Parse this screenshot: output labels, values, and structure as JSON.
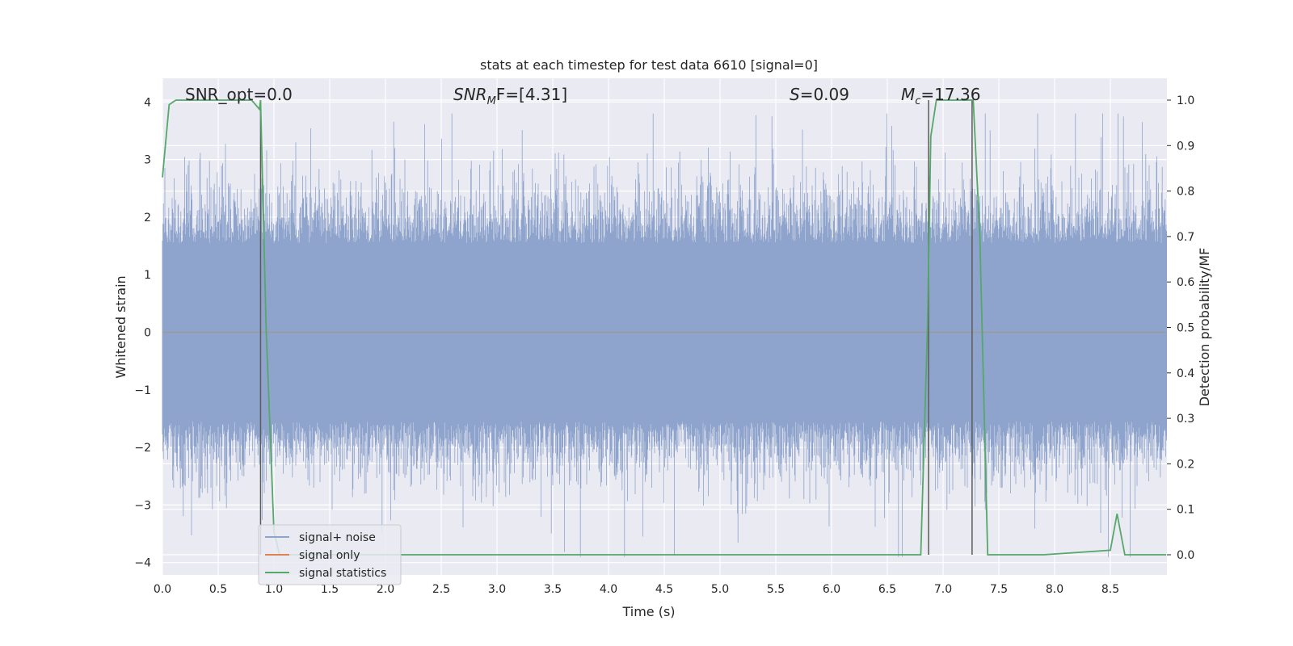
{
  "chart_data": {
    "type": "line",
    "title": "stats at each timestep for test data 6610 [signal=0]",
    "xlabel": "Time (s)",
    "ylabel": "Whitened strain",
    "ylabel_right": "Detection probability/MF",
    "xlim": [
      0.0,
      9.0
    ],
    "ylim": [
      -4.2,
      4.4
    ],
    "ylim_right": [
      -0.047,
      1.047
    ],
    "x_ticks": [
      "0.0",
      "0.5",
      "1.0",
      "1.5",
      "2.0",
      "2.5",
      "3.0",
      "3.5",
      "4.0",
      "4.5",
      "5.0",
      "5.5",
      "6.0",
      "6.5",
      "7.0",
      "7.5",
      "8.0",
      "8.5"
    ],
    "y_ticks": [
      "4",
      "3",
      "2",
      "1",
      "0",
      "−1",
      "−2",
      "−3",
      "−4"
    ],
    "y_ticks_right": [
      "1.0",
      "0.9",
      "0.8",
      "0.7",
      "0.6",
      "0.5",
      "0.4",
      "0.3",
      "0.2",
      "0.1",
      "0.0"
    ],
    "grid": true,
    "legend_position": "lower-left",
    "annotations": {
      "snr_opt": "SNR_opt=0.0",
      "snr_mf_base": "SNR",
      "snr_mf_sub": "M",
      "snr_mf_rest": "F=[4.31]",
      "s_italic": "S",
      "s_rest": "=0.09",
      "mc_italic": "M",
      "mc_sub": "c",
      "mc_rest": "=17.36"
    },
    "series": [
      {
        "name": "signal+ noise",
        "color": "#8fa4cc",
        "description_values": "noise-like whitened strain, mostly within ±2, spikes to about ±3.8",
        "envelope_upper": 2.2,
        "envelope_lower": -2.0
      },
      {
        "name": "signal only",
        "color": "#dd8452",
        "values": [
          [
            0.0,
            0.0
          ],
          [
            9.0,
            0.0
          ]
        ]
      },
      {
        "name": "signal statistics",
        "color": "#55a868",
        "axis": "right",
        "points": [
          [
            0.0,
            0.83
          ],
          [
            0.06,
            0.99
          ],
          [
            0.12,
            1.0
          ],
          [
            0.8,
            1.0
          ],
          [
            0.87,
            0.98
          ],
          [
            0.88,
            1.0
          ],
          [
            0.93,
            0.5
          ],
          [
            1.0,
            0.05
          ],
          [
            1.05,
            0.0
          ],
          [
            6.8,
            0.0
          ],
          [
            6.86,
            0.5
          ],
          [
            6.89,
            0.92
          ],
          [
            6.94,
            1.0
          ],
          [
            7.27,
            1.0
          ],
          [
            7.33,
            0.7
          ],
          [
            7.4,
            0.0
          ],
          [
            7.9,
            0.0
          ],
          [
            8.5,
            0.01
          ],
          [
            8.56,
            0.09
          ],
          [
            8.63,
            0.0
          ],
          [
            9.0,
            0.0
          ]
        ]
      }
    ],
    "vertical_markers": [
      0.88,
      6.87,
      7.26
    ],
    "marker_color": "#5a5a5a"
  },
  "legend": {
    "items": [
      {
        "label": "signal+ noise",
        "color": "#8fa4cc"
      },
      {
        "label": "signal only",
        "color": "#dd8452"
      },
      {
        "label": "signal statistics",
        "color": "#55a868"
      }
    ]
  },
  "colors": {
    "plot_bg": "#eaeaf2",
    "grid": "#ffffff",
    "text": "#262626"
  }
}
